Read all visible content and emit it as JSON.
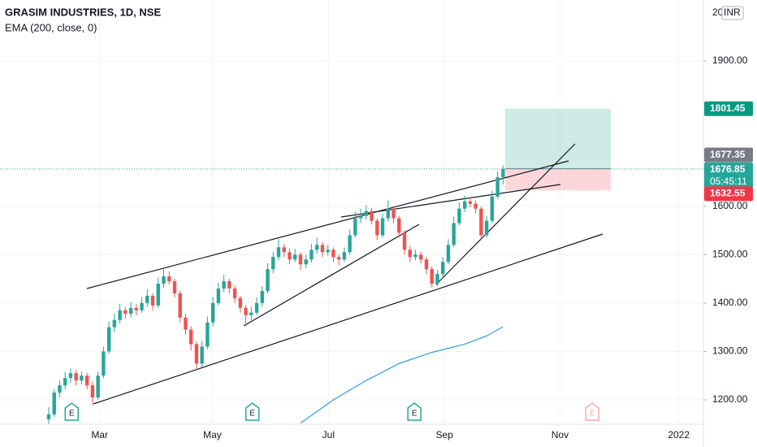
{
  "chart_data": {
    "type": "candlestick",
    "title": "GRASIM INDUSTRIES, 1D, NSE",
    "currency": "INR",
    "top_tick_fragment": "20",
    "up_color": "#26a69a",
    "down_color": "#ef5350",
    "ylim": [
      1151.3,
      2025.9
    ],
    "yticks": [
      {
        "value": 1200,
        "label": "1200.00"
      },
      {
        "value": 1300,
        "label": "1300.00"
      },
      {
        "value": 1400,
        "label": "1400.00"
      },
      {
        "value": 1500,
        "label": "1500.00"
      },
      {
        "value": 1600,
        "label": "1600.00"
      },
      {
        "value": 1900,
        "label": "1900.00"
      }
    ],
    "xlim": [
      -8.9,
      119.6
    ],
    "xticks": [
      {
        "value": 9.3,
        "label": "Mar"
      },
      {
        "value": 29.9,
        "label": "May"
      },
      {
        "value": 51.1,
        "label": "Jul"
      },
      {
        "value": 72.3,
        "label": "Sep"
      },
      {
        "value": 93.4,
        "label": "Nov"
      },
      {
        "value": 115.1,
        "label": "2022"
      }
    ],
    "ohlc": [
      [
        1160,
        1185,
        1150,
        1170
      ],
      [
        1170,
        1222,
        1165,
        1215
      ],
      [
        1215,
        1240,
        1205,
        1230
      ],
      [
        1230,
        1258,
        1222,
        1245
      ],
      [
        1245,
        1265,
        1235,
        1255
      ],
      [
        1255,
        1262,
        1230,
        1240
      ],
      [
        1240,
        1258,
        1232,
        1250
      ],
      [
        1250,
        1256,
        1222,
        1230
      ],
      [
        1230,
        1238,
        1190,
        1205
      ],
      [
        1205,
        1258,
        1200,
        1250
      ],
      [
        1250,
        1310,
        1245,
        1300
      ],
      [
        1300,
        1362,
        1295,
        1350
      ],
      [
        1350,
        1378,
        1340,
        1365
      ],
      [
        1365,
        1398,
        1358,
        1385
      ],
      [
        1385,
        1392,
        1368,
        1378
      ],
      [
        1378,
        1402,
        1370,
        1390
      ],
      [
        1390,
        1398,
        1375,
        1385
      ],
      [
        1385,
        1412,
        1380,
        1400
      ],
      [
        1400,
        1428,
        1392,
        1415
      ],
      [
        1415,
        1420,
        1385,
        1395
      ],
      [
        1395,
        1452,
        1390,
        1440
      ],
      [
        1440,
        1472,
        1432,
        1455
      ],
      [
        1455,
        1465,
        1438,
        1445
      ],
      [
        1445,
        1450,
        1412,
        1420
      ],
      [
        1420,
        1425,
        1360,
        1370
      ],
      [
        1370,
        1378,
        1335,
        1345
      ],
      [
        1345,
        1352,
        1302,
        1315
      ],
      [
        1315,
        1320,
        1262,
        1275
      ],
      [
        1275,
        1322,
        1268,
        1310
      ],
      [
        1310,
        1372,
        1305,
        1360
      ],
      [
        1360,
        1412,
        1352,
        1400
      ],
      [
        1400,
        1442,
        1395,
        1430
      ],
      [
        1430,
        1458,
        1422,
        1445
      ],
      [
        1445,
        1450,
        1420,
        1430
      ],
      [
        1430,
        1436,
        1400,
        1410
      ],
      [
        1410,
        1415,
        1380,
        1390
      ],
      [
        1390,
        1396,
        1352,
        1375
      ],
      [
        1375,
        1392,
        1365,
        1380
      ],
      [
        1380,
        1412,
        1375,
        1400
      ],
      [
        1400,
        1435,
        1392,
        1425
      ],
      [
        1425,
        1482,
        1420,
        1470
      ],
      [
        1470,
        1505,
        1462,
        1495
      ],
      [
        1495,
        1532,
        1488,
        1515
      ],
      [
        1515,
        1522,
        1495,
        1505
      ],
      [
        1505,
        1512,
        1480,
        1490
      ],
      [
        1490,
        1512,
        1484,
        1500
      ],
      [
        1500,
        1505,
        1468,
        1480
      ],
      [
        1480,
        1500,
        1472,
        1490
      ],
      [
        1490,
        1522,
        1484,
        1510
      ],
      [
        1510,
        1535,
        1502,
        1520
      ],
      [
        1520,
        1526,
        1495,
        1505
      ],
      [
        1505,
        1520,
        1498,
        1510
      ],
      [
        1510,
        1515,
        1485,
        1495
      ],
      [
        1495,
        1500,
        1478,
        1490
      ],
      [
        1490,
        1515,
        1485,
        1505
      ],
      [
        1505,
        1552,
        1500,
        1540
      ],
      [
        1540,
        1588,
        1535,
        1575
      ],
      [
        1575,
        1595,
        1565,
        1580
      ],
      [
        1580,
        1602,
        1572,
        1590
      ],
      [
        1590,
        1596,
        1562,
        1570
      ],
      [
        1570,
        1575,
        1530,
        1540
      ],
      [
        1540,
        1585,
        1535,
        1575
      ],
      [
        1575,
        1612,
        1568,
        1595
      ],
      [
        1595,
        1600,
        1565,
        1575
      ],
      [
        1575,
        1580,
        1535,
        1545
      ],
      [
        1545,
        1550,
        1500,
        1510
      ],
      [
        1510,
        1518,
        1485,
        1495
      ],
      [
        1495,
        1510,
        1488,
        1500
      ],
      [
        1500,
        1506,
        1482,
        1490
      ],
      [
        1490,
        1495,
        1460,
        1470
      ],
      [
        1470,
        1476,
        1432,
        1440
      ],
      [
        1440,
        1468,
        1435,
        1460
      ],
      [
        1460,
        1495,
        1455,
        1485
      ],
      [
        1485,
        1532,
        1480,
        1520
      ],
      [
        1520,
        1578,
        1515,
        1565
      ],
      [
        1565,
        1608,
        1560,
        1595
      ],
      [
        1595,
        1622,
        1588,
        1610
      ],
      [
        1610,
        1618,
        1598,
        1605
      ],
      [
        1605,
        1612,
        1585,
        1595
      ],
      [
        1595,
        1600,
        1530,
        1540
      ],
      [
        1540,
        1580,
        1535,
        1570
      ],
      [
        1570,
        1632,
        1565,
        1620
      ],
      [
        1620,
        1672,
        1615,
        1660
      ],
      [
        1660,
        1684,
        1645,
        1676.85
      ]
    ],
    "ema": {
      "name": "EMA (200, close, 0)",
      "color": "#2a9fd6",
      "x": [
        46,
        52,
        58,
        64,
        70,
        76,
        80,
        83
      ],
      "values": [
        1152,
        1200,
        1240,
        1275,
        1298,
        1315,
        1332,
        1351
      ]
    },
    "position": {
      "target": 1801.45,
      "entry": 1677.35,
      "stop": 1632.55,
      "target_color": "#089981",
      "entry_color": "#787b86",
      "stop_color": "#f23645"
    },
    "last_price": 1676.85,
    "countdown": "05:45:11",
    "earnings": {
      "label": "E",
      "x": [
        4.2,
        37.2,
        66.8,
        99.3
      ]
    }
  }
}
